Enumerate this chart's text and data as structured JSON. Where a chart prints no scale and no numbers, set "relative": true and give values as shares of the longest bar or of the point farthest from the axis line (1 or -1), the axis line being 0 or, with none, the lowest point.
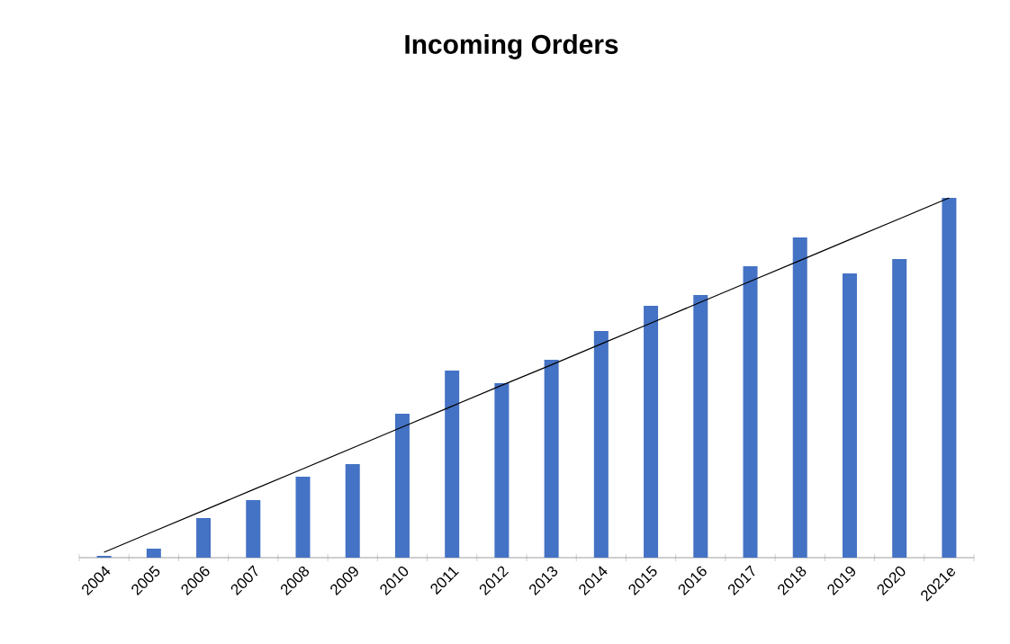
{
  "chart_data": {
    "type": "bar",
    "title": "Incoming Orders",
    "relative": true,
    "categories": [
      "2004",
      "2005",
      "2006",
      "2007",
      "2008",
      "2009",
      "2010",
      "2011",
      "2012",
      "2013",
      "2014",
      "2015",
      "2016",
      "2017",
      "2018",
      "2019",
      "2020",
      "2021e"
    ],
    "series": [
      {
        "color": "#4472c4",
        "values": [
          0.005,
          0.025,
          0.11,
          0.16,
          0.225,
          0.26,
          0.4,
          0.52,
          0.485,
          0.55,
          0.63,
          0.7,
          0.73,
          0.81,
          0.89,
          0.79,
          0.83,
          1.0
        ]
      },
      {
        "type": "line",
        "color": "#000000",
        "values": [
          0.015,
          0.073,
          0.131,
          0.189,
          0.247,
          0.305,
          0.363,
          0.421,
          0.479,
          0.536,
          0.594,
          0.652,
          0.71,
          0.768,
          0.826,
          0.884,
          0.942,
          1.0
        ]
      }
    ]
  }
}
